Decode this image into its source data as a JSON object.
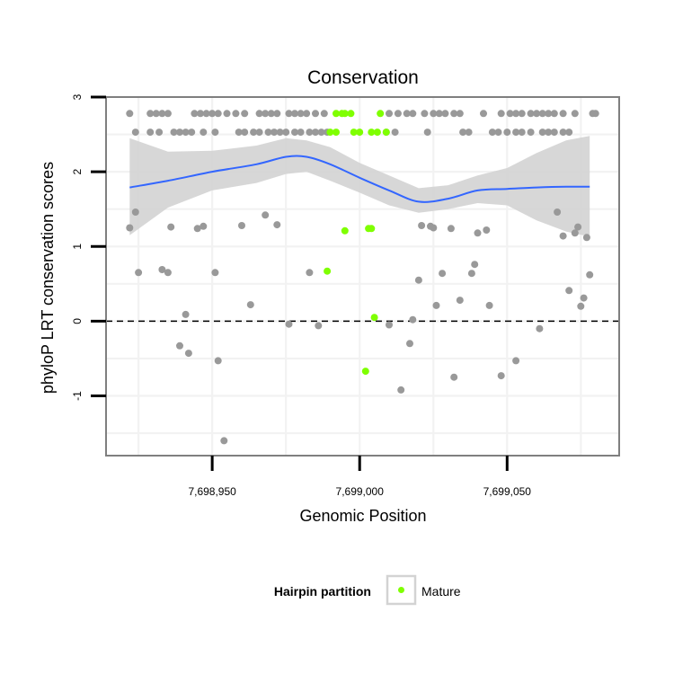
{
  "chart_data": {
    "type": "scatter",
    "title": "Conservation",
    "xlabel": "Genomic Position",
    "ylabel": "phyloP LRT conservation scores",
    "xlim": [
      7698914,
      7699088
    ],
    "ylim": [
      -1.8,
      3.0
    ],
    "x_ticks": [
      7698950,
      7699000,
      7699050
    ],
    "x_tick_labels": [
      "7,698,950",
      "7,699,000",
      "7,699,050"
    ],
    "y_ticks": [
      -1,
      0,
      1,
      2,
      3
    ],
    "y_tick_labels": [
      "-1",
      "0",
      "1",
      "2",
      "3"
    ],
    "grid": true,
    "reference_line": {
      "y": 0,
      "style": "dashed",
      "color": "#000000"
    },
    "colors": {
      "other": "#999999",
      "mature": "#7fff00",
      "smooth_line": "#3366ff",
      "confidence_band": "#d3d3d3",
      "panel_border": "#7f7f7f",
      "grid": "#f2f2f2"
    },
    "legend": {
      "title": "Hairpin partition",
      "position": "bottom",
      "entries": [
        {
          "label": "Mature",
          "color": "#7fff00"
        }
      ]
    },
    "series": [
      {
        "name": "",
        "color": "#999999",
        "points": [
          [
            7698922,
            2.78
          ],
          [
            7698929,
            2.78
          ],
          [
            7698931,
            2.78
          ],
          [
            7698933,
            2.78
          ],
          [
            7698935,
            2.78
          ],
          [
            7698944,
            2.78
          ],
          [
            7698946,
            2.78
          ],
          [
            7698948,
            2.78
          ],
          [
            7698950,
            2.78
          ],
          [
            7698952,
            2.78
          ],
          [
            7698955,
            2.78
          ],
          [
            7698958,
            2.78
          ],
          [
            7698961,
            2.78
          ],
          [
            7698966,
            2.78
          ],
          [
            7698968,
            2.78
          ],
          [
            7698970,
            2.78
          ],
          [
            7698972,
            2.78
          ],
          [
            7698976,
            2.78
          ],
          [
            7698978,
            2.78
          ],
          [
            7698980,
            2.78
          ],
          [
            7698982,
            2.78
          ],
          [
            7698985,
            2.78
          ],
          [
            7698988,
            2.78
          ],
          [
            7699010,
            2.78
          ],
          [
            7699013,
            2.78
          ],
          [
            7699016,
            2.78
          ],
          [
            7699018,
            2.78
          ],
          [
            7699022,
            2.78
          ],
          [
            7699025,
            2.78
          ],
          [
            7699027,
            2.78
          ],
          [
            7699029,
            2.78
          ],
          [
            7699032,
            2.78
          ],
          [
            7699034,
            2.78
          ],
          [
            7699042,
            2.78
          ],
          [
            7699048,
            2.78
          ],
          [
            7699051,
            2.78
          ],
          [
            7699053,
            2.78
          ],
          [
            7699055,
            2.78
          ],
          [
            7699058,
            2.78
          ],
          [
            7699060,
            2.78
          ],
          [
            7699062,
            2.78
          ],
          [
            7699064,
            2.78
          ],
          [
            7699066,
            2.78
          ],
          [
            7699069,
            2.78
          ],
          [
            7699073,
            2.78
          ],
          [
            7699079,
            2.78
          ],
          [
            7699080,
            2.78
          ],
          [
            7698924,
            2.53
          ],
          [
            7698929,
            2.53
          ],
          [
            7698932,
            2.53
          ],
          [
            7698937,
            2.53
          ],
          [
            7698939,
            2.53
          ],
          [
            7698941,
            2.53
          ],
          [
            7698943,
            2.53
          ],
          [
            7698947,
            2.53
          ],
          [
            7698951,
            2.53
          ],
          [
            7698959,
            2.53
          ],
          [
            7698961,
            2.53
          ],
          [
            7698964,
            2.53
          ],
          [
            7698966,
            2.53
          ],
          [
            7698969,
            2.53
          ],
          [
            7698971,
            2.53
          ],
          [
            7698973,
            2.53
          ],
          [
            7698975,
            2.53
          ],
          [
            7698978,
            2.53
          ],
          [
            7698980,
            2.53
          ],
          [
            7698983,
            2.53
          ],
          [
            7698985,
            2.53
          ],
          [
            7698987,
            2.53
          ],
          [
            7698989,
            2.53
          ],
          [
            7699009,
            2.53
          ],
          [
            7699012,
            2.53
          ],
          [
            7699023,
            2.53
          ],
          [
            7699035,
            2.53
          ],
          [
            7699037,
            2.53
          ],
          [
            7699045,
            2.53
          ],
          [
            7699047,
            2.53
          ],
          [
            7699050,
            2.53
          ],
          [
            7699053,
            2.53
          ],
          [
            7699055,
            2.53
          ],
          [
            7699058,
            2.53
          ],
          [
            7699062,
            2.53
          ],
          [
            7699064,
            2.53
          ],
          [
            7699066,
            2.53
          ],
          [
            7699069,
            2.53
          ],
          [
            7699071,
            2.53
          ],
          [
            7698922,
            1.25
          ],
          [
            7698924,
            1.46
          ],
          [
            7698925,
            0.65
          ],
          [
            7698933,
            0.69
          ],
          [
            7698935,
            0.65
          ],
          [
            7698936,
            1.26
          ],
          [
            7698939,
            -0.33
          ],
          [
            7698941,
            0.09
          ],
          [
            7698942,
            -0.43
          ],
          [
            7698945,
            1.24
          ],
          [
            7698947,
            1.27
          ],
          [
            7698951,
            0.65
          ],
          [
            7698952,
            -0.53
          ],
          [
            7698954,
            -1.6
          ],
          [
            7698960,
            1.28
          ],
          [
            7698963,
            0.22
          ],
          [
            7698968,
            1.42
          ],
          [
            7698972,
            1.29
          ],
          [
            7698976,
            -0.04
          ],
          [
            7698983,
            0.65
          ],
          [
            7698986,
            -0.06
          ],
          [
            7699010,
            -0.05
          ],
          [
            7699014,
            -0.92
          ],
          [
            7699017,
            -0.3
          ],
          [
            7699018,
            0.02
          ],
          [
            7699020,
            0.55
          ],
          [
            7699021,
            1.28
          ],
          [
            7699024,
            1.27
          ],
          [
            7699025,
            1.25
          ],
          [
            7699026,
            0.21
          ],
          [
            7699028,
            0.64
          ],
          [
            7699031,
            1.24
          ],
          [
            7699032,
            -0.75
          ],
          [
            7699034,
            0.28
          ],
          [
            7699038,
            0.64
          ],
          [
            7699039,
            0.76
          ],
          [
            7699040,
            1.18
          ],
          [
            7699043,
            1.22
          ],
          [
            7699044,
            0.21
          ],
          [
            7699048,
            -0.73
          ],
          [
            7699053,
            -0.53
          ],
          [
            7699061,
            -0.1
          ],
          [
            7699067,
            1.46
          ],
          [
            7699069,
            1.14
          ],
          [
            7699071,
            0.41
          ],
          [
            7699073,
            1.18
          ],
          [
            7699074,
            1.26
          ],
          [
            7699075,
            0.2
          ],
          [
            7699076,
            0.31
          ],
          [
            7699077,
            1.12
          ],
          [
            7699078,
            0.62
          ]
        ]
      },
      {
        "name": "Mature",
        "color": "#7fff00",
        "points": [
          [
            7698992,
            2.78
          ],
          [
            7698994,
            2.78
          ],
          [
            7698995,
            2.78
          ],
          [
            7698997,
            2.78
          ],
          [
            7699007,
            2.78
          ],
          [
            7698990,
            2.53
          ],
          [
            7698992,
            2.53
          ],
          [
            7698998,
            2.53
          ],
          [
            7699000,
            2.53
          ],
          [
            7699004,
            2.53
          ],
          [
            7699006,
            2.53
          ],
          [
            7699009,
            2.53
          ],
          [
            7698989,
            0.67
          ],
          [
            7698995,
            1.21
          ],
          [
            7699002,
            -0.67
          ],
          [
            7699003,
            1.24
          ],
          [
            7699004,
            1.24
          ],
          [
            7699005,
            0.05
          ]
        ]
      }
    ],
    "smooth_fit": {
      "x": [
        7698922,
        7698935,
        7698950,
        7698965,
        7698975,
        7698982,
        7698990,
        7699000,
        7699010,
        7699020,
        7699030,
        7699040,
        7699050,
        7699060,
        7699070,
        7699078
      ],
      "y": [
        1.79,
        1.88,
        2.0,
        2.1,
        2.2,
        2.2,
        2.1,
        1.92,
        1.75,
        1.6,
        1.64,
        1.75,
        1.77,
        1.79,
        1.8,
        1.8
      ],
      "lower": [
        1.15,
        1.52,
        1.75,
        1.85,
        1.97,
        2.0,
        1.88,
        1.72,
        1.55,
        1.45,
        1.5,
        1.58,
        1.55,
        1.35,
        1.2,
        1.13
      ],
      "upper": [
        2.45,
        2.27,
        2.28,
        2.35,
        2.45,
        2.42,
        2.33,
        2.12,
        1.95,
        1.78,
        1.82,
        1.95,
        2.05,
        2.25,
        2.42,
        2.48
      ]
    }
  }
}
